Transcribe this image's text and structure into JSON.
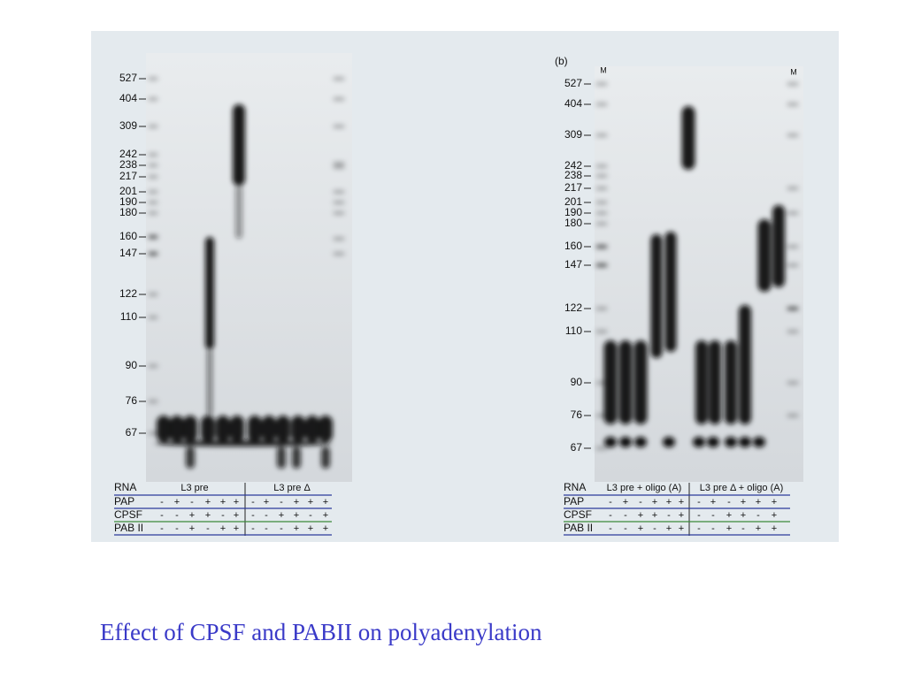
{
  "panel_a": {
    "markers": [
      "527",
      "404",
      "309",
      "242",
      "238",
      "217",
      "201",
      "190",
      "180",
      "160",
      "147",
      "122",
      "110",
      "90",
      "76",
      "67"
    ],
    "table": {
      "rna_label": "RNA",
      "groups": [
        "L3 pre",
        "L3 pre Δ"
      ],
      "rows": [
        {
          "label": "PAP",
          "signs": [
            "-",
            "+",
            "-",
            "+",
            "+",
            "+",
            "-",
            "+",
            "-",
            "+",
            "+",
            "+"
          ]
        },
        {
          "label": "CPSF",
          "signs": [
            "-",
            "-",
            "+",
            "+",
            "-",
            "+",
            "-",
            "-",
            "+",
            "+",
            "-",
            "+"
          ]
        },
        {
          "label": "PAB II",
          "signs": [
            "-",
            "-",
            "+",
            "-",
            "+",
            "+",
            "-",
            "-",
            "-",
            "+",
            "+",
            "+"
          ]
        }
      ]
    }
  },
  "panel_b": {
    "tag": "(b)",
    "lane_left": "M",
    "lane_right": "M",
    "markers": [
      "527",
      "404",
      "309",
      "242",
      "238",
      "217",
      "201",
      "190",
      "180",
      "160",
      "147",
      "122",
      "110",
      "90",
      "76",
      "67"
    ],
    "table": {
      "rna_label": "RNA",
      "groups": [
        "L3 pre + oligo (A)",
        "L3 pre Δ + oligo (A)"
      ],
      "rows": [
        {
          "label": "PAP",
          "signs": [
            "-",
            "+",
            "-",
            "+",
            "+",
            "+",
            "-",
            "+",
            "-",
            "+",
            "+",
            "+"
          ]
        },
        {
          "label": "CPSF",
          "signs": [
            "-",
            "-",
            "+",
            "+",
            "-",
            "+",
            "-",
            "-",
            "+",
            "+",
            "-",
            "+"
          ]
        },
        {
          "label": "PAB II",
          "signs": [
            "-",
            "-",
            "+",
            "-",
            "+",
            "+",
            "-",
            "-",
            "+",
            "-",
            "+",
            "+"
          ]
        }
      ]
    }
  },
  "caption": "Effect of CPSF and PABII on polyadenylation"
}
